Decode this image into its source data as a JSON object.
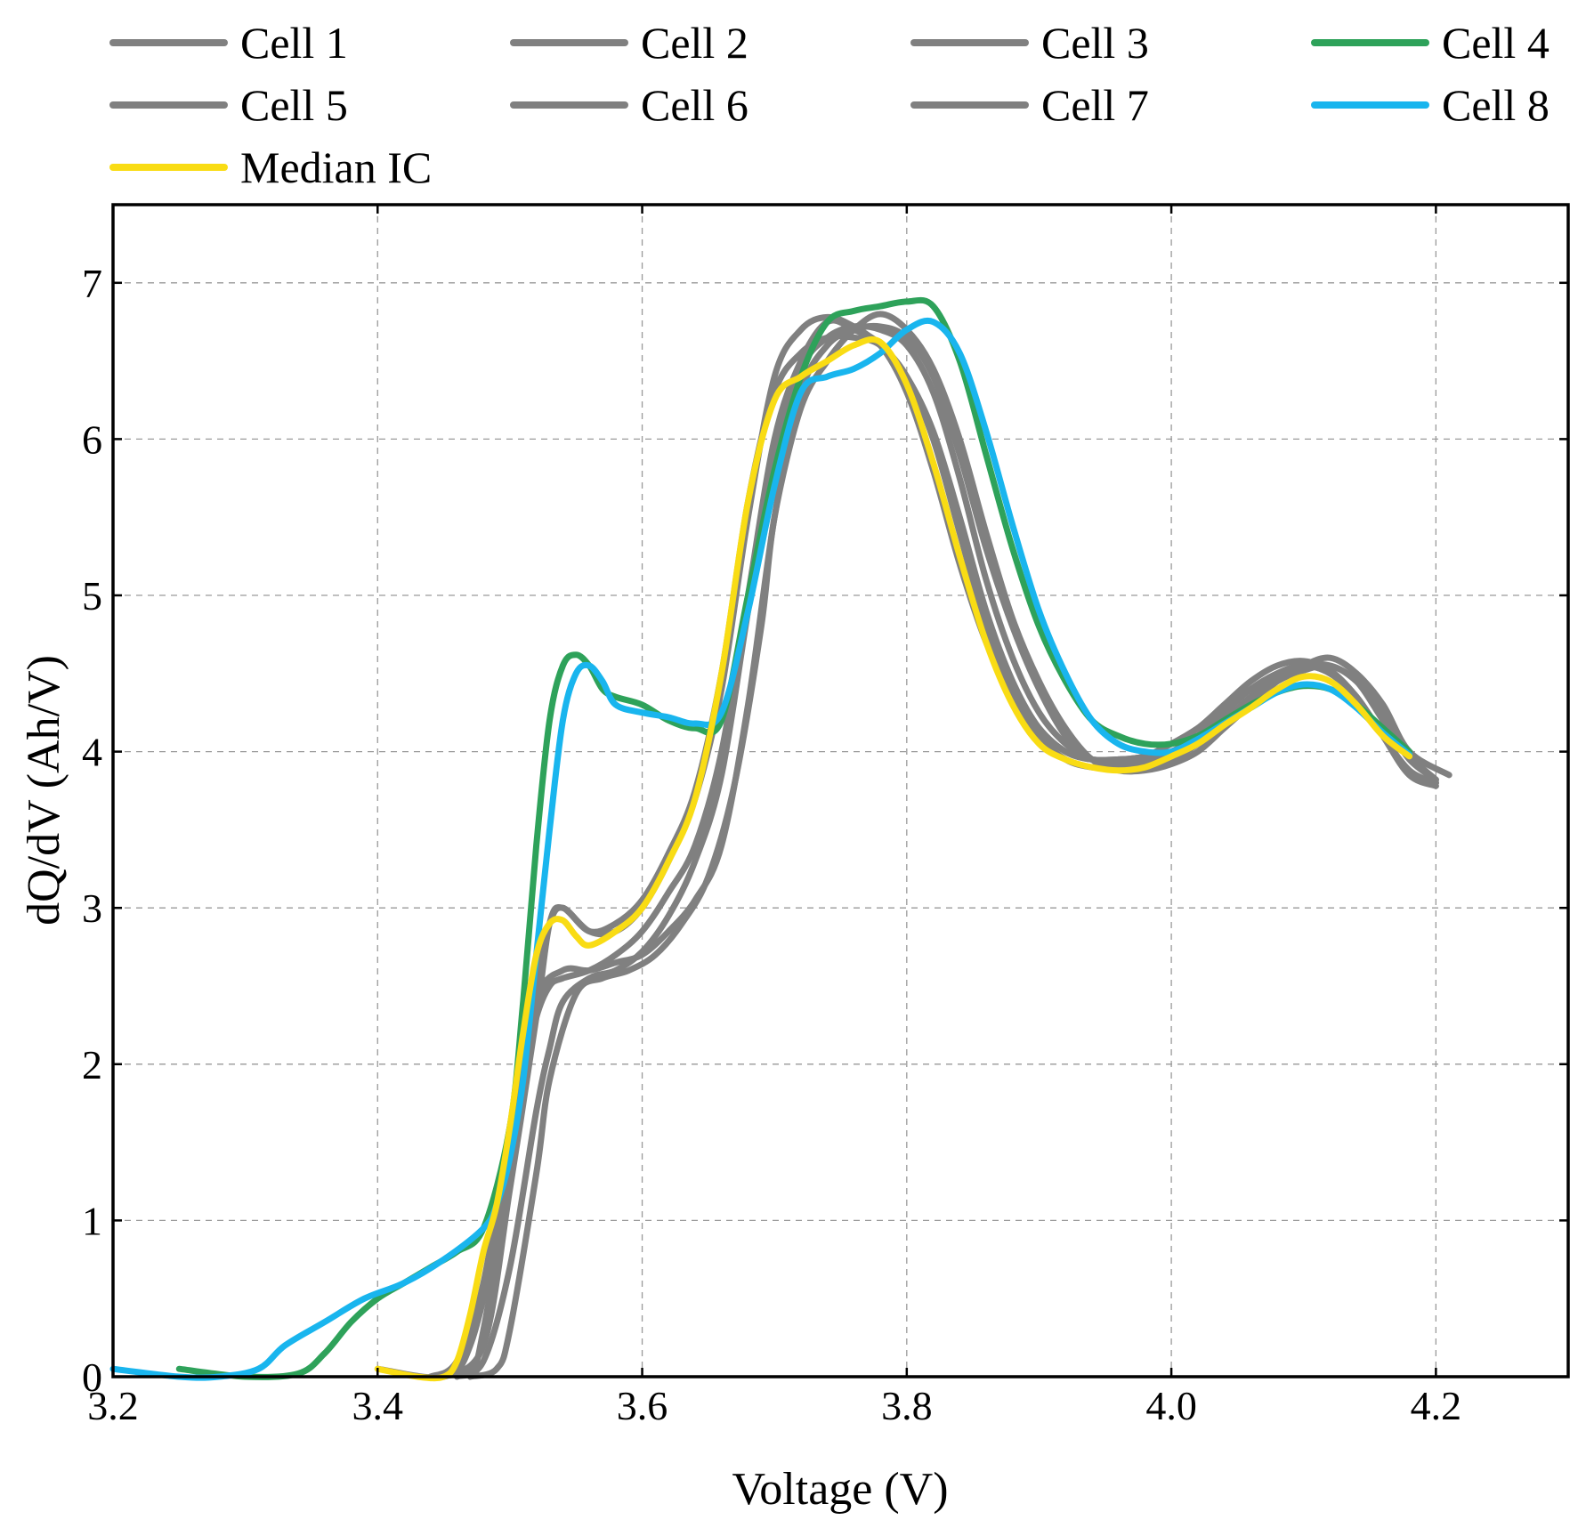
{
  "chart_data": {
    "type": "line",
    "title": "",
    "xlabel": "Voltage (V)",
    "ylabel": "dQ/dV (Ah/V)",
    "xlim": [
      3.2,
      4.3
    ],
    "ylim": [
      0,
      7.5
    ],
    "x_ticks": [
      3.2,
      3.4,
      3.6,
      3.8,
      4.0,
      4.2
    ],
    "x_tick_labels": [
      "3.2",
      "3.4",
      "3.6",
      "3.8",
      "4.0",
      "4.2"
    ],
    "y_ticks": [
      0,
      1,
      2,
      3,
      4,
      5,
      6,
      7
    ],
    "y_tick_labels": [
      "0",
      "1",
      "2",
      "3",
      "4",
      "5",
      "6",
      "7"
    ],
    "grid": true,
    "legend_position": "top",
    "series": [
      {
        "name": "Cell 1",
        "color": "#808080",
        "x": [
          3.44,
          3.47,
          3.48,
          3.5,
          3.51,
          3.52,
          3.53,
          3.54,
          3.56,
          3.58,
          3.6,
          3.62,
          3.64,
          3.66,
          3.68,
          3.7,
          3.72,
          3.74,
          3.76,
          3.78,
          3.8,
          3.82,
          3.84,
          3.86,
          3.88,
          3.9,
          3.92,
          3.94,
          3.96,
          3.98,
          4.0,
          4.02,
          4.04,
          4.06,
          4.08,
          4.1,
          4.12,
          4.14,
          4.16,
          4.18,
          4.2
        ],
        "y": [
          0.0,
          0.05,
          0.3,
          1.3,
          1.9,
          2.3,
          2.5,
          2.55,
          2.6,
          2.7,
          2.85,
          3.1,
          3.4,
          4.0,
          5.0,
          6.0,
          6.5,
          6.75,
          6.7,
          6.6,
          6.3,
          5.8,
          5.2,
          4.7,
          4.35,
          4.1,
          3.95,
          3.9,
          3.9,
          3.95,
          4.0,
          4.1,
          4.25,
          4.4,
          4.5,
          4.55,
          4.5,
          4.35,
          4.1,
          3.85,
          3.8
        ]
      },
      {
        "name": "Cell 2",
        "color": "#808080",
        "x": [
          3.45,
          3.48,
          3.5,
          3.52,
          3.53,
          3.54,
          3.56,
          3.58,
          3.6,
          3.62,
          3.64,
          3.66,
          3.68,
          3.7,
          3.72,
          3.74,
          3.76,
          3.78,
          3.8,
          3.82,
          3.84,
          3.86,
          3.88,
          3.9,
          3.92,
          3.94,
          3.96,
          3.98,
          4.0,
          4.02,
          4.04,
          4.06,
          4.08,
          4.1,
          4.12,
          4.14,
          4.16,
          4.18,
          4.2
        ],
        "y": [
          0.0,
          0.2,
          1.2,
          2.3,
          2.9,
          3.0,
          2.85,
          2.85,
          3.0,
          3.3,
          3.7,
          4.4,
          5.5,
          6.4,
          6.7,
          6.78,
          6.72,
          6.6,
          6.4,
          6.0,
          5.4,
          4.8,
          4.4,
          4.15,
          4.0,
          3.95,
          3.95,
          3.97,
          4.05,
          4.15,
          4.3,
          4.45,
          4.55,
          4.58,
          4.52,
          4.35,
          4.1,
          3.85,
          3.78
        ]
      },
      {
        "name": "Cell 3",
        "color": "#808080",
        "x": [
          3.47,
          3.49,
          3.5,
          3.52,
          3.53,
          3.55,
          3.57,
          3.59,
          3.61,
          3.63,
          3.65,
          3.67,
          3.69,
          3.7,
          3.72,
          3.74,
          3.76,
          3.78,
          3.8,
          3.82,
          3.84,
          3.86,
          3.88,
          3.9,
          3.92,
          3.94,
          3.96,
          3.98,
          4.0,
          4.02,
          4.04,
          4.06,
          4.08,
          4.1,
          4.12,
          4.14,
          4.16,
          4.18,
          4.21
        ],
        "y": [
          0.0,
          0.05,
          0.3,
          1.3,
          1.9,
          2.45,
          2.55,
          2.6,
          2.7,
          2.9,
          3.2,
          3.8,
          4.8,
          5.5,
          6.2,
          6.5,
          6.7,
          6.8,
          6.7,
          6.45,
          6.0,
          5.4,
          4.85,
          4.45,
          4.15,
          3.95,
          3.88,
          3.88,
          3.92,
          4.0,
          4.15,
          4.3,
          4.45,
          4.55,
          4.6,
          4.5,
          4.3,
          4.0,
          3.85
        ]
      },
      {
        "name": "Cell 4",
        "color": "#2ea25a",
        "x": [
          3.25,
          3.3,
          3.34,
          3.36,
          3.38,
          3.4,
          3.42,
          3.44,
          3.46,
          3.48,
          3.5,
          3.51,
          3.52,
          3.53,
          3.54,
          3.55,
          3.56,
          3.57,
          3.58,
          3.6,
          3.62,
          3.64,
          3.66,
          3.68,
          3.7,
          3.72,
          3.74,
          3.76,
          3.78,
          3.8,
          3.82,
          3.84,
          3.86,
          3.88,
          3.9,
          3.92,
          3.94,
          3.96,
          3.98,
          4.0,
          4.02,
          4.04,
          4.06,
          4.08,
          4.1,
          4.12,
          4.14,
          4.16,
          4.18
        ],
        "y": [
          0.05,
          0.0,
          0.02,
          0.15,
          0.35,
          0.5,
          0.6,
          0.7,
          0.8,
          0.95,
          1.6,
          2.4,
          3.4,
          4.2,
          4.55,
          4.62,
          4.55,
          4.4,
          4.35,
          4.3,
          4.2,
          4.15,
          4.2,
          5.0,
          5.8,
          6.4,
          6.75,
          6.82,
          6.85,
          6.88,
          6.85,
          6.5,
          5.9,
          5.3,
          4.8,
          4.45,
          4.2,
          4.1,
          4.05,
          4.05,
          4.1,
          4.2,
          4.3,
          4.38,
          4.42,
          4.4,
          4.3,
          4.15,
          4.0
        ]
      },
      {
        "name": "Cell 5",
        "color": "#808080",
        "x": [
          3.4,
          3.45,
          3.47,
          3.49,
          3.5,
          3.52,
          3.54,
          3.56,
          3.58,
          3.6,
          3.62,
          3.64,
          3.66,
          3.68,
          3.7,
          3.72,
          3.74,
          3.76,
          3.78,
          3.8,
          3.82,
          3.84,
          3.86,
          3.88,
          3.9,
          3.92,
          3.94,
          3.96,
          3.98,
          4.0,
          4.02,
          4.04,
          4.06,
          4.08,
          4.1,
          4.12,
          4.14,
          4.16,
          4.18,
          4.2
        ],
        "y": [
          0.05,
          0.0,
          0.2,
          0.9,
          1.5,
          2.4,
          2.6,
          2.6,
          2.65,
          2.7,
          2.85,
          3.05,
          3.4,
          4.3,
          5.5,
          6.3,
          6.6,
          6.7,
          6.72,
          6.65,
          6.4,
          5.9,
          5.3,
          4.8,
          4.4,
          4.1,
          3.95,
          3.9,
          3.9,
          3.95,
          4.05,
          4.2,
          4.35,
          4.48,
          4.55,
          4.55,
          4.45,
          4.2,
          3.95,
          3.82
        ]
      },
      {
        "name": "Cell 6",
        "color": "#808080",
        "x": [
          3.44,
          3.46,
          3.48,
          3.5,
          3.52,
          3.53,
          3.54,
          3.56,
          3.58,
          3.6,
          3.62,
          3.64,
          3.66,
          3.68,
          3.7,
          3.72,
          3.74,
          3.76,
          3.78,
          3.8,
          3.82,
          3.84,
          3.86,
          3.88,
          3.9,
          3.92,
          3.94,
          3.96,
          3.98,
          4.0,
          4.02,
          4.04,
          4.06,
          4.08,
          4.1,
          4.12,
          4.14,
          4.16,
          4.18,
          4.2
        ],
        "y": [
          0.0,
          0.1,
          0.6,
          1.6,
          2.5,
          2.9,
          3.0,
          2.85,
          2.9,
          3.05,
          3.35,
          3.75,
          4.5,
          5.6,
          6.3,
          6.55,
          6.65,
          6.65,
          6.6,
          6.4,
          6.05,
          5.5,
          4.9,
          4.45,
          4.15,
          4.0,
          3.95,
          3.95,
          3.97,
          4.05,
          4.15,
          4.28,
          4.4,
          4.5,
          4.55,
          4.5,
          4.35,
          4.1,
          3.88,
          3.8
        ]
      },
      {
        "name": "Cell 7",
        "color": "#808080",
        "x": [
          3.46,
          3.48,
          3.5,
          3.52,
          3.53,
          3.54,
          3.56,
          3.58,
          3.6,
          3.62,
          3.64,
          3.66,
          3.68,
          3.7,
          3.72,
          3.74,
          3.76,
          3.78,
          3.8,
          3.82,
          3.84,
          3.86,
          3.88,
          3.9,
          3.92,
          3.94,
          3.96,
          3.98,
          4.0,
          4.02,
          4.04,
          4.06,
          4.08,
          4.1,
          4.12,
          4.14,
          4.16,
          4.18,
          4.2
        ],
        "y": [
          0.0,
          0.1,
          0.7,
          1.7,
          2.1,
          2.4,
          2.55,
          2.6,
          2.72,
          2.95,
          3.3,
          3.85,
          4.9,
          5.9,
          6.45,
          6.65,
          6.72,
          6.7,
          6.6,
          6.3,
          5.75,
          5.1,
          4.6,
          4.25,
          4.05,
          3.95,
          3.92,
          3.93,
          3.97,
          4.05,
          4.18,
          4.32,
          4.45,
          4.52,
          4.55,
          4.45,
          4.25,
          3.98,
          3.82
        ]
      },
      {
        "name": "Cell 8",
        "color": "#19b5ee",
        "x": [
          3.2,
          3.25,
          3.28,
          3.31,
          3.33,
          3.36,
          3.39,
          3.42,
          3.45,
          3.48,
          3.49,
          3.5,
          3.51,
          3.52,
          3.53,
          3.54,
          3.55,
          3.56,
          3.57,
          3.58,
          3.6,
          3.62,
          3.64,
          3.66,
          3.68,
          3.7,
          3.72,
          3.74,
          3.76,
          3.78,
          3.8,
          3.82,
          3.84,
          3.86,
          3.88,
          3.9,
          3.92,
          3.94,
          3.96,
          3.98,
          4.0,
          4.02,
          4.04,
          4.06,
          4.08,
          4.1,
          4.12,
          4.14,
          4.16,
          4.18
        ],
        "y": [
          0.05,
          0.0,
          0.0,
          0.05,
          0.2,
          0.35,
          0.5,
          0.6,
          0.75,
          0.95,
          1.1,
          1.4,
          1.9,
          2.7,
          3.5,
          4.2,
          4.5,
          4.55,
          4.45,
          4.3,
          4.25,
          4.22,
          4.18,
          4.25,
          4.9,
          5.7,
          6.3,
          6.4,
          6.45,
          6.55,
          6.7,
          6.75,
          6.55,
          6.05,
          5.45,
          4.9,
          4.5,
          4.2,
          4.05,
          4.0,
          4.0,
          4.08,
          4.18,
          4.28,
          4.38,
          4.43,
          4.4,
          4.28,
          4.12,
          3.98
        ]
      },
      {
        "name": "Median IC",
        "color": "#f9dc14",
        "x": [
          3.4,
          3.43,
          3.45,
          3.46,
          3.47,
          3.48,
          3.49,
          3.5,
          3.51,
          3.52,
          3.53,
          3.54,
          3.55,
          3.56,
          3.58,
          3.6,
          3.62,
          3.64,
          3.66,
          3.68,
          3.7,
          3.72,
          3.74,
          3.76,
          3.78,
          3.8,
          3.82,
          3.84,
          3.86,
          3.88,
          3.9,
          3.92,
          3.94,
          3.96,
          3.98,
          4.0,
          4.02,
          4.04,
          4.06,
          4.08,
          4.1,
          4.12,
          4.14,
          4.16,
          4.18
        ],
        "y": [
          0.05,
          0.0,
          0.0,
          0.1,
          0.4,
          0.8,
          1.1,
          1.6,
          2.2,
          2.7,
          2.9,
          2.92,
          2.82,
          2.76,
          2.85,
          3.0,
          3.3,
          3.7,
          4.5,
          5.6,
          6.25,
          6.4,
          6.5,
          6.6,
          6.62,
          6.35,
          5.85,
          5.25,
          4.7,
          4.3,
          4.05,
          3.95,
          3.9,
          3.88,
          3.9,
          3.97,
          4.05,
          4.17,
          4.28,
          4.4,
          4.48,
          4.45,
          4.3,
          4.1,
          3.97
        ]
      }
    ]
  }
}
